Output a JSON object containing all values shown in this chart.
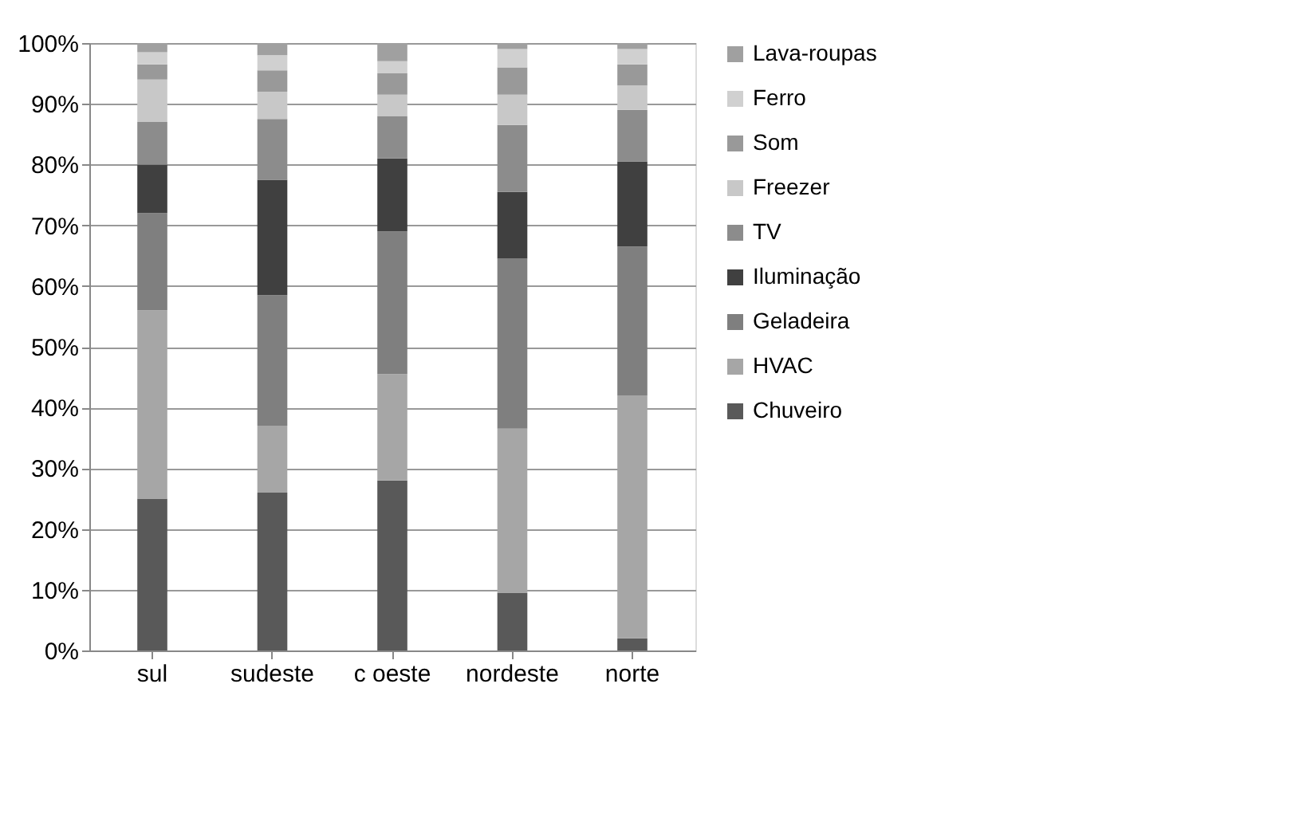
{
  "chart_data": {
    "type": "bar",
    "stacked": true,
    "categories": [
      "sul",
      "sudeste",
      "c oeste",
      "nordeste",
      "norte"
    ],
    "series": [
      {
        "name": "Chuveiro",
        "color": "#595959",
        "values": [
          25,
          26,
          28,
          9.5,
          2
        ]
      },
      {
        "name": "HVAC",
        "color": "#a6a6a6",
        "values": [
          31,
          11,
          17.5,
          27,
          40
        ]
      },
      {
        "name": "Geladeira",
        "color": "#7f7f7f",
        "values": [
          16,
          21.5,
          23.5,
          28,
          24.5
        ]
      },
      {
        "name": "Iluminação",
        "color": "#404040",
        "values": [
          8,
          19,
          12,
          11,
          14
        ]
      },
      {
        "name": "TV",
        "color": "#8c8c8c",
        "values": [
          7,
          10,
          7,
          11,
          8.5
        ]
      },
      {
        "name": "Freezer",
        "color": "#c8c8c8",
        "values": [
          7,
          4.5,
          3.5,
          5,
          4
        ]
      },
      {
        "name": "Som",
        "color": "#999999",
        "values": [
          2.5,
          3.5,
          3.5,
          4.5,
          3.5
        ]
      },
      {
        "name": "Ferro",
        "color": "#d0d0d0",
        "values": [
          2,
          2.5,
          2,
          3,
          2.5
        ]
      },
      {
        "name": "Lava-roupas",
        "color": "#a0a0a0",
        "values": [
          1.5,
          2,
          3,
          1,
          1
        ]
      }
    ],
    "ylim": [
      0,
      100
    ],
    "yticks": [
      {
        "value": 0,
        "label": "0%"
      },
      {
        "value": 10,
        "label": "10%"
      },
      {
        "value": 20,
        "label": "20%"
      },
      {
        "value": 30,
        "label": "30%"
      },
      {
        "value": 40,
        "label": "40%"
      },
      {
        "value": 50,
        "label": "50%"
      },
      {
        "value": 60,
        "label": "60%"
      },
      {
        "value": 70,
        "label": "70%"
      },
      {
        "value": 80,
        "label": "80%"
      },
      {
        "value": 90,
        "label": "90%"
      },
      {
        "value": 100,
        "label": "100%"
      }
    ],
    "grid": "y",
    "legend": "right"
  }
}
